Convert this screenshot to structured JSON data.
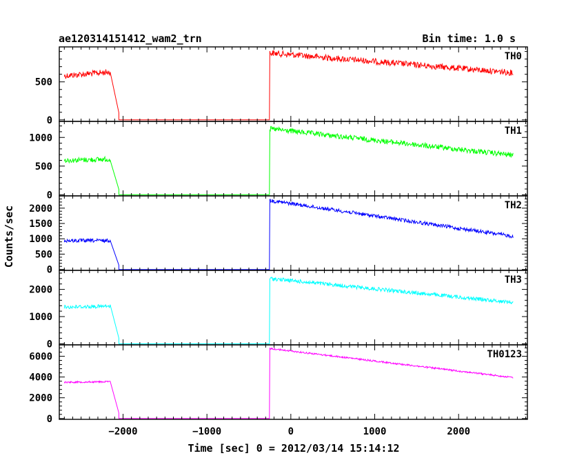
{
  "chart_data": {
    "type": "line",
    "title": "ae120314151412_wam2_trn",
    "bin_time": "Bin time: 1.0 s",
    "xlabel": "Time [sec] 0 = 2012/03/14 15:14:12",
    "ylabel": "Counts/sec",
    "xlim": [
      -2760,
      2820
    ],
    "x_ticks": [
      -2000,
      -1000,
      0,
      1000,
      2000
    ],
    "x_tick_labels": [
      "−2000",
      "−1000",
      "0",
      "1000",
      "2000"
    ],
    "panels": [
      {
        "name": "TH0",
        "color": "#ff0000",
        "ylim": [
          -20,
          960
        ],
        "y_ticks": [
          0,
          500
        ],
        "y_tick_labels": [
          "0",
          "500"
        ],
        "noise": 40,
        "segments": [
          {
            "x": [
              -2700,
              -2150
            ],
            "y": [
              580,
              630
            ]
          },
          {
            "x": [
              -2050,
              -250
            ],
            "y": [
              0,
              0
            ]
          },
          {
            "x": [
              -250,
              2650
            ],
            "y": [
              880,
              620
            ]
          }
        ]
      },
      {
        "name": "TH1",
        "color": "#00ff00",
        "ylim": [
          -20,
          1280
        ],
        "y_ticks": [
          0,
          500,
          1000
        ],
        "y_tick_labels": [
          "0",
          "500",
          "1000"
        ],
        "noise": 45,
        "segments": [
          {
            "x": [
              -2700,
              -2150
            ],
            "y": [
              600,
              620
            ]
          },
          {
            "x": [
              -2050,
              -250
            ],
            "y": [
              0,
              0
            ]
          },
          {
            "x": [
              -250,
              2650
            ],
            "y": [
              1150,
              690
            ]
          }
        ]
      },
      {
        "name": "TH2",
        "color": "#0000ff",
        "ylim": [
          -30,
          2400
        ],
        "y_ticks": [
          0,
          500,
          1000,
          1500,
          2000
        ],
        "y_tick_labels": [
          "0",
          "500",
          "1000",
          "1500",
          "2000"
        ],
        "noise": 60,
        "segments": [
          {
            "x": [
              -2700,
              -2150
            ],
            "y": [
              940,
              940
            ]
          },
          {
            "x": [
              -2050,
              -250
            ],
            "y": [
              0,
              0
            ]
          },
          {
            "x": [
              -250,
              2650
            ],
            "y": [
              2250,
              1080
            ]
          }
        ]
      },
      {
        "name": "TH3",
        "color": "#00ffff",
        "ylim": [
          -40,
          2700
        ],
        "y_ticks": [
          0,
          1000,
          2000
        ],
        "y_tick_labels": [
          "0",
          "1000",
          "2000"
        ],
        "noise": 70,
        "segments": [
          {
            "x": [
              -2700,
              -2150
            ],
            "y": [
              1350,
              1380
            ]
          },
          {
            "x": [
              -2050,
              -250
            ],
            "y": [
              0,
              0
            ]
          },
          {
            "x": [
              -250,
              2650
            ],
            "y": [
              2400,
              1520
            ]
          }
        ]
      },
      {
        "name": "TH0123",
        "color": "#ff00ff",
        "ylim": [
          -80,
          7100
        ],
        "y_ticks": [
          0,
          2000,
          4000,
          6000
        ],
        "y_tick_labels": [
          "0",
          "2000",
          "4000",
          "6000"
        ],
        "noise": 80,
        "segments": [
          {
            "x": [
              -2700,
              -2150
            ],
            "y": [
              3500,
              3550
            ]
          },
          {
            "x": [
              -2050,
              -250
            ],
            "y": [
              0,
              0
            ]
          },
          {
            "x": [
              -250,
              2650
            ],
            "y": [
              6750,
              3950
            ]
          }
        ]
      }
    ]
  }
}
